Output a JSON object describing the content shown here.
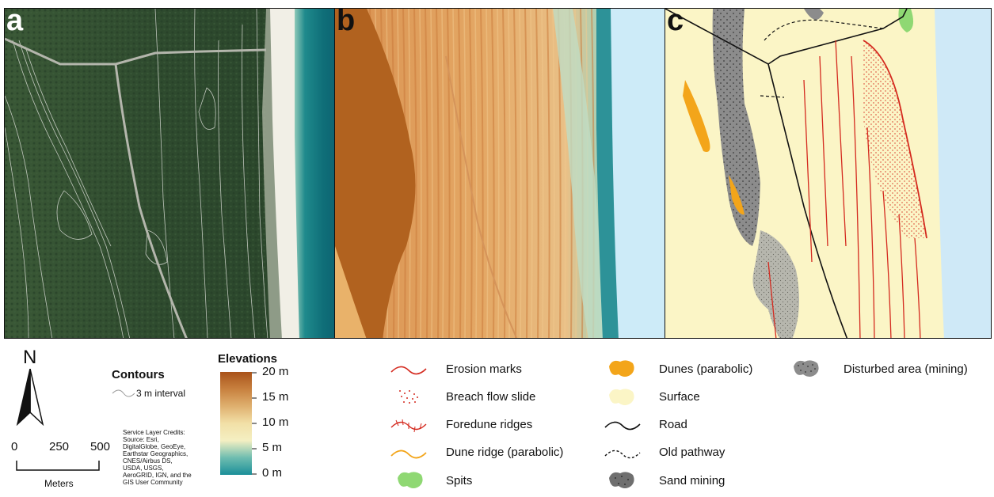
{
  "panels": {
    "a": {
      "label": "a"
    },
    "b": {
      "label": "b"
    },
    "c": {
      "label": "c"
    }
  },
  "north": {
    "label": "N"
  },
  "contours": {
    "title": "Contours",
    "item": "3 m interval"
  },
  "credits": {
    "lines": [
      "Service Layer Credits:",
      "Source: Esri,",
      "DigitalGlobe, GeoEye,",
      "Earthstar Geographics,",
      "CNES/Airbus DS,",
      "USDA, USGS,",
      "AeroGRID, IGN, and the",
      "GIS User Community"
    ]
  },
  "scalebar": {
    "ticks": [
      "0",
      "250",
      "500"
    ],
    "unit": "Meters"
  },
  "elevations": {
    "title": "Elevations",
    "ticks": [
      "20 m",
      "15 m",
      "10 m",
      "5 m",
      "0 m"
    ],
    "gradient": [
      "#a9531a",
      "#c8813f",
      "#dfb06f",
      "#f2e0a7",
      "#f4efc2",
      "#6fbdb0",
      "#1b8f99"
    ]
  },
  "legend_items": [
    {
      "label": "Erosion marks",
      "icon": "erosion-marks-icon"
    },
    {
      "label": "Breach flow slide",
      "icon": "breach-flow-slide-icon"
    },
    {
      "label": "Foredune ridges",
      "icon": "foredune-ridges-icon"
    },
    {
      "label": "Dune ridge (parabolic)",
      "icon": "dune-ridge-icon"
    },
    {
      "label": "Spits",
      "icon": "spits-icon"
    },
    {
      "label": "Dunes (parabolic)",
      "icon": "dunes-parabolic-icon"
    },
    {
      "label": "Surface",
      "icon": "surface-icon"
    },
    {
      "label": "Road",
      "icon": "road-icon"
    },
    {
      "label": "Old pathway",
      "icon": "old-pathway-icon"
    },
    {
      "label": "Sand mining",
      "icon": "sand-mining-icon"
    },
    {
      "label": "Disturbed area (mining)",
      "icon": "disturbed-area-icon"
    }
  ],
  "colors": {
    "forest": "#2f4a30",
    "beach": "#efeee6",
    "ocean": "#1f7f86",
    "water_light": "#cfe9f7",
    "surface": "#fbf5c6",
    "erosion": "#d42a1f",
    "dune_orange": "#f3a51a",
    "spit_green": "#8fd873",
    "mining_gray": "#8c8c8c",
    "disturbed_gray": "#b6b6ad"
  }
}
